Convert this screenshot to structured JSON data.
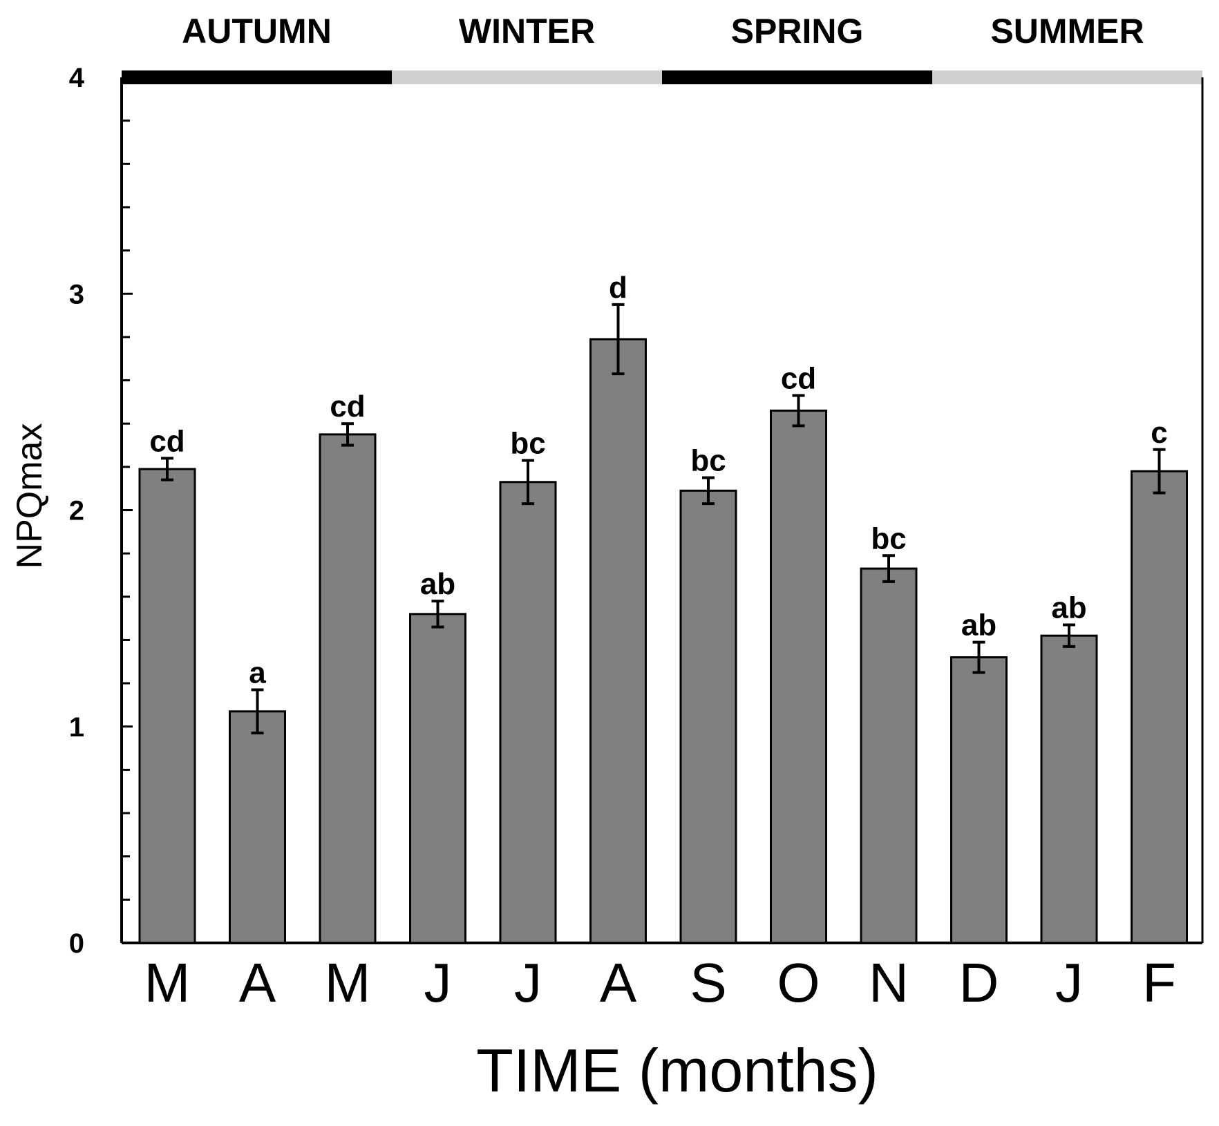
{
  "chart_data": {
    "type": "bar",
    "title": "",
    "xlabel": "TIME (months)",
    "ylabel": "NPQmax",
    "ylim": [
      0,
      4
    ],
    "yticks": [
      "0",
      "1",
      "2",
      "3",
      "4"
    ],
    "grid": false,
    "categories": [
      "M",
      "A",
      "M",
      "J",
      "J",
      "A",
      "S",
      "O",
      "N",
      "D",
      "J",
      "F"
    ],
    "values": [
      2.19,
      1.07,
      2.35,
      1.52,
      2.13,
      2.79,
      2.09,
      2.46,
      1.73,
      1.32,
      1.42,
      2.18
    ],
    "errors": [
      0.05,
      0.1,
      0.05,
      0.06,
      0.1,
      0.16,
      0.06,
      0.07,
      0.06,
      0.07,
      0.05,
      0.1
    ],
    "significance": [
      "cd",
      "a",
      "cd",
      "ab",
      "bc",
      "d",
      "bc",
      "cd",
      "bc",
      "ab",
      "ab",
      "c"
    ],
    "bar_color": "#808080",
    "seasons": [
      {
        "label": "AUTUMN",
        "color": "#000000"
      },
      {
        "label": "WINTER",
        "color": "#d0d0d0"
      },
      {
        "label": "SPRING",
        "color": "#000000"
      },
      {
        "label": "SUMMER",
        "color": "#d0d0d0"
      }
    ]
  }
}
